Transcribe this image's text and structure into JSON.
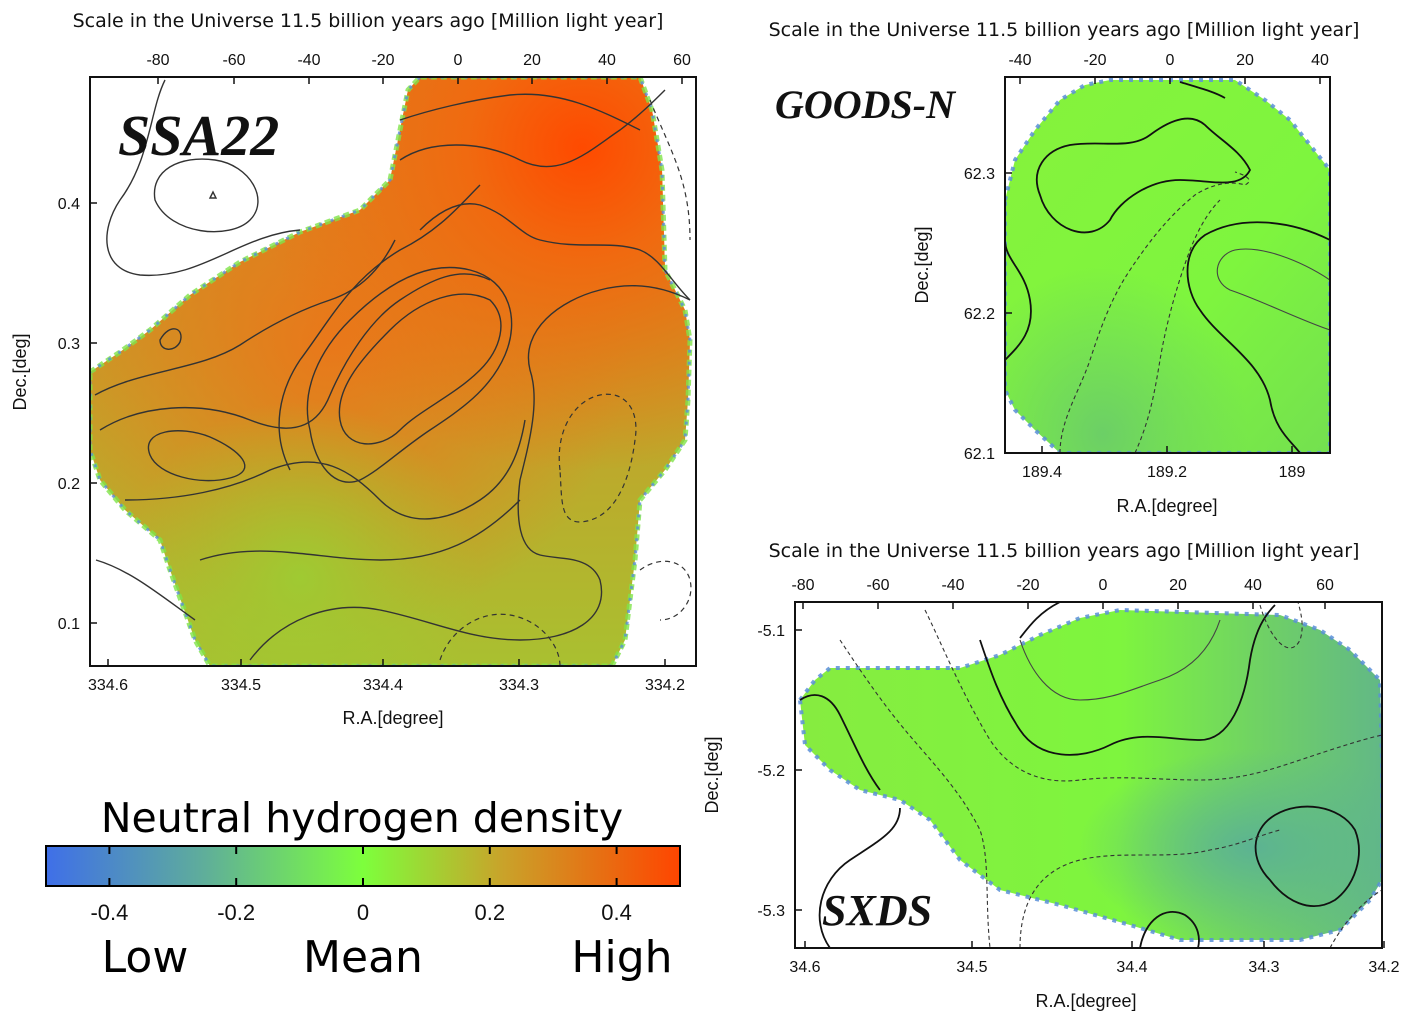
{
  "colors": {
    "low": "#3f6fe8",
    "mean": "#7dff3c",
    "high": "#ff4500",
    "contour": "#222222",
    "frame": "#111111"
  },
  "colorbar": {
    "title": "Neutral hydrogen density",
    "ticks": [
      "-0.4",
      "-0.2",
      "0",
      "0.2",
      "0.4"
    ],
    "tick_values": [
      -0.4,
      -0.2,
      0,
      0.2,
      0.4
    ],
    "range": [
      -0.5,
      0.5
    ],
    "low_label": "Low",
    "mean_label": "Mean",
    "high_label": "High"
  },
  "chart_data": [
    {
      "type": "heatmap",
      "field": "SSA22",
      "title": "Scale in the Universe 11.5 billion years ago [Million light year]",
      "xlabel": "R.A.[degree]",
      "ylabel": "Dec.[deg]",
      "xlim": [
        334.62,
        334.18
      ],
      "ylim": [
        0.07,
        0.49
      ],
      "x_ticks": [
        "334.6",
        "334.5",
        "334.4",
        "334.3",
        "334.2"
      ],
      "y_ticks": [
        "0.4",
        "0.3",
        "0.2",
        "0.1"
      ],
      "top_ticks": [
        "-80",
        "-60",
        "-40",
        "-20",
        "0",
        "20",
        "40",
        "60"
      ],
      "density_peaks": [
        {
          "ra": 334.28,
          "dec": 0.43,
          "value": 0.45
        },
        {
          "ra": 334.42,
          "dec": 0.31,
          "value": 0.3
        },
        {
          "ra": 334.5,
          "dec": 0.28,
          "value": 0.22
        },
        {
          "ra": 334.3,
          "dec": 0.13,
          "value": 0.2
        },
        {
          "ra": 334.47,
          "dec": 0.14,
          "value": 0.05
        }
      ]
    },
    {
      "type": "heatmap",
      "field": "GOODS-N",
      "title": "Scale in the Universe 11.5 billion years ago [Million light year]",
      "xlabel": "R.A.[degree]",
      "ylabel": "Dec.[deg]",
      "xlim": [
        189.43,
        188.96
      ],
      "ylim": [
        62.1,
        62.37
      ],
      "x_ticks": [
        "189.4",
        "189.2",
        "189"
      ],
      "y_ticks": [
        "62.3",
        "62.2",
        "62.1"
      ],
      "top_ticks": [
        "-40",
        "-20",
        "0",
        "20",
        "40"
      ],
      "density_peaks": [
        {
          "ra": 189.2,
          "dec": 62.33,
          "value": 0.05
        },
        {
          "ra": 189.0,
          "dec": 62.25,
          "value": 0.03
        },
        {
          "ra": 189.3,
          "dec": 62.15,
          "value": -0.05
        }
      ]
    },
    {
      "type": "heatmap",
      "field": "SXDS",
      "title": "Scale in the Universe 11.5 billion years ago [Million light year]",
      "xlabel": "R.A.[degree]",
      "ylabel": "Dec.[deg]",
      "xlim": [
        34.62,
        34.2
      ],
      "ylim": [
        -5.33,
        -5.08
      ],
      "x_ticks": [
        "34.6",
        "34.5",
        "34.4",
        "34.3",
        "34.2"
      ],
      "y_ticks": [
        "-5.1",
        "-5.2",
        "-5.3"
      ],
      "top_ticks": [
        "-80",
        "-60",
        "-40",
        "-20",
        "0",
        "20",
        "40",
        "60"
      ],
      "density_peaks": [
        {
          "ra": 34.58,
          "dec": -5.17,
          "value": 0.05
        },
        {
          "ra": 34.4,
          "dec": -5.12,
          "value": 0.02
        },
        {
          "ra": 34.25,
          "dec": -5.27,
          "value": -0.2
        }
      ]
    }
  ],
  "labels": {
    "ssa22": "SSA22",
    "goodsn": "GOODS-N",
    "sxds": "SXDS"
  }
}
